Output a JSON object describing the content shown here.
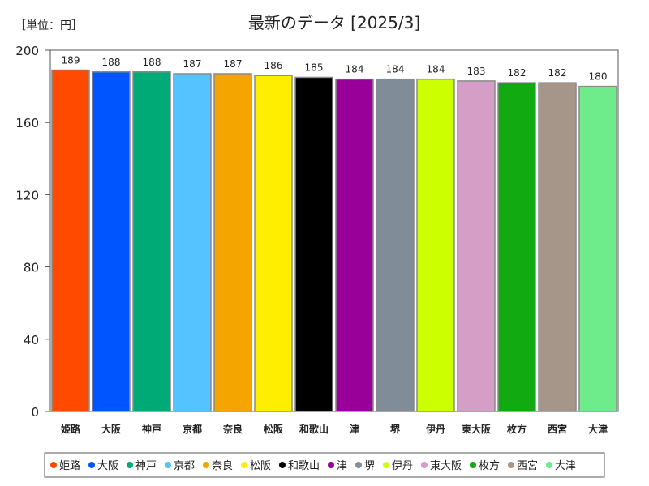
{
  "chart_data": {
    "type": "bar",
    "title": "最新のデータ [2025/3]",
    "unit_label": "［単位：円］",
    "xlabel": "",
    "ylabel": "",
    "ylim": [
      0,
      200
    ],
    "yticks": [
      0,
      40,
      80,
      120,
      160,
      200
    ],
    "grid": false,
    "legend": "bottom",
    "categories": [
      "姫路",
      "大阪",
      "神戸",
      "京都",
      "奈良",
      "松阪",
      "和歌山",
      "津",
      "堺",
      "伊丹",
      "東大阪",
      "枚方",
      "西宮",
      "大津"
    ],
    "values": [
      189,
      188,
      188,
      187,
      187,
      186,
      185,
      184,
      184,
      184,
      183,
      182,
      182,
      180
    ],
    "colors": [
      "#ff4a00",
      "#0055ff",
      "#00aa77",
      "#55c3ff",
      "#f5a500",
      "#ffee00",
      "#000000",
      "#990099",
      "#808d99",
      "#ccff00",
      "#d59ec7",
      "#11aa11",
      "#a69589",
      "#6eec8b"
    ]
  }
}
